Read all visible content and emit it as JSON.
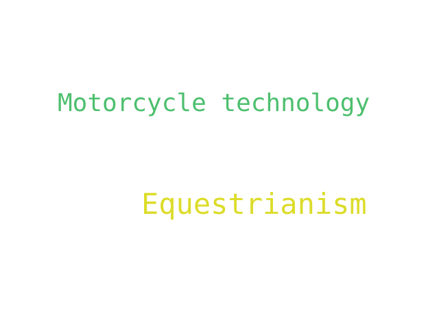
{
  "words": [
    {
      "text": "Motorcycle technology",
      "color": "#4dbf6e"
    },
    {
      "text": "Equestrianism",
      "color": "#dcdc2a"
    }
  ]
}
